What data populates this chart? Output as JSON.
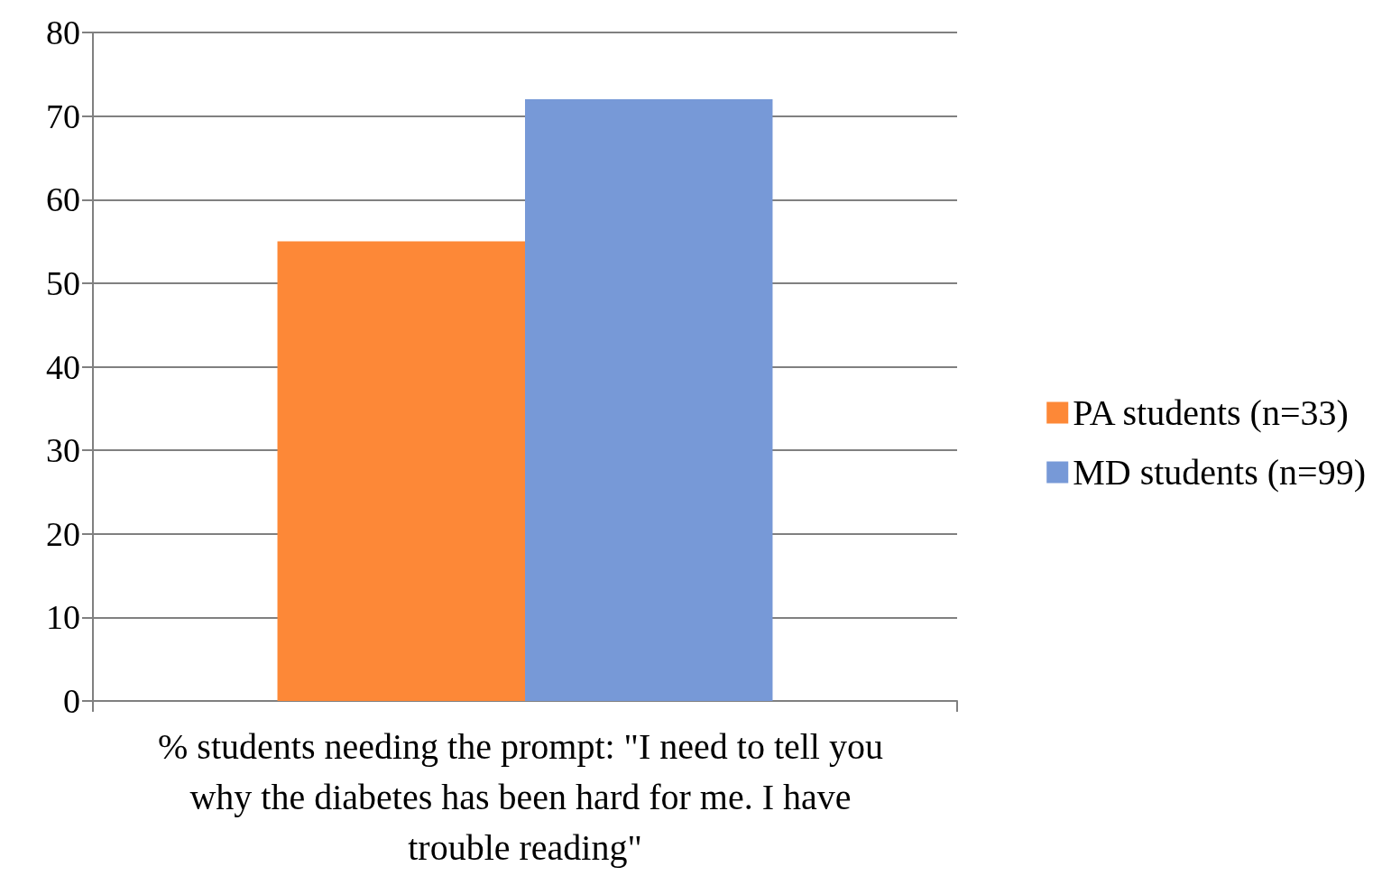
{
  "chart_data": {
    "type": "bar",
    "categories": [
      "% students needing the prompt: \"I need to tell you why the diabetes has been hard for me. I have trouble reading\""
    ],
    "series": [
      {
        "name": "PA students (n=33)",
        "color": "#fd8837",
        "values": [
          55
        ]
      },
      {
        "name": "MD students (n=99)",
        "color": "#7799d7",
        "values": [
          72
        ]
      }
    ],
    "ylim": [
      0,
      80
    ],
    "yticks": [
      0,
      10,
      20,
      30,
      40,
      50,
      60,
      70,
      80
    ],
    "grid": "y",
    "legend": "right"
  }
}
